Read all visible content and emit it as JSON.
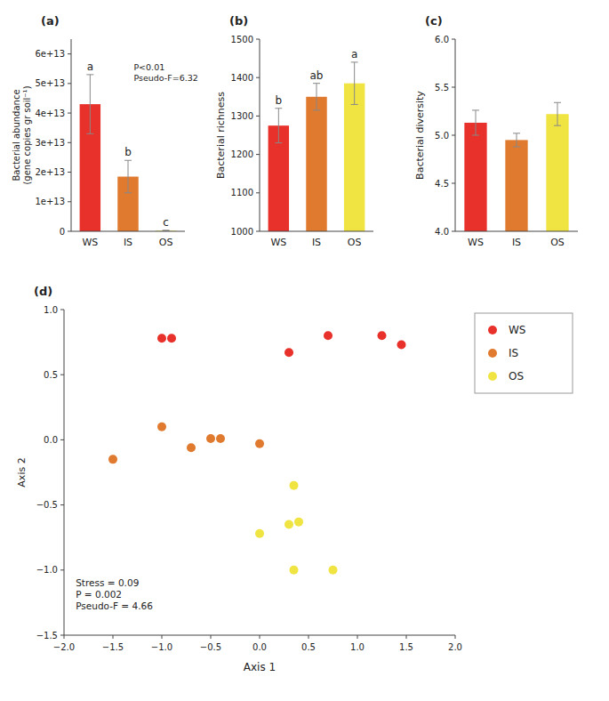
{
  "chart_data": [
    {
      "type": "bar",
      "title": "(a)",
      "categories": [
        "WS",
        "IS",
        "OS"
      ],
      "values": [
        43000000000000.0,
        18500000000000.0,
        200000000000.0
      ],
      "errors": [
        10000000000000.0,
        5500000000000.0,
        150000000000.0
      ],
      "colors": [
        "#e8312a",
        "#e07a2f",
        "#f0e442"
      ],
      "error_color": "#888888",
      "ylabel": "Bacterial abundance\n(gene copies gr soil⁻¹)",
      "ylim": [
        0,
        65000000000000.0
      ],
      "yticks": [
        0,
        {
          "value": 10000000000000.0,
          "label": "1e+13"
        },
        {
          "value": 20000000000000.0,
          "label": "2e+13"
        },
        {
          "value": 30000000000000.0,
          "label": "3e+13"
        },
        {
          "value": 40000000000000.0,
          "label": "4e+13"
        },
        {
          "value": 50000000000000.0,
          "label": "5e+13"
        },
        {
          "value": 60000000000000.0,
          "label": "6e+13"
        }
      ],
      "letters": [
        "a",
        "b",
        "c"
      ],
      "annotation": "P<0.01\nPseudo-F=6.32",
      "grid": false
    },
    {
      "type": "bar",
      "title": "(b)",
      "categories": [
        "WS",
        "IS",
        "OS"
      ],
      "values": [
        1275,
        1350,
        1385
      ],
      "errors": [
        45,
        35,
        55
      ],
      "colors": [
        "#e8312a",
        "#e07a2f",
        "#f0e442"
      ],
      "error_color": "#888888",
      "ylabel": "Bacterial richness",
      "ylim": [
        1000,
        1500
      ],
      "yticks": [
        1000,
        1100,
        1200,
        1300,
        1400,
        1500
      ],
      "letters": [
        "b",
        "ab",
        "a"
      ],
      "grid": false
    },
    {
      "type": "bar",
      "title": "(c)",
      "categories": [
        "WS",
        "IS",
        "OS"
      ],
      "values": [
        5.13,
        4.95,
        5.22
      ],
      "errors": [
        0.13,
        0.07,
        0.12
      ],
      "colors": [
        "#e8312a",
        "#e07a2f",
        "#f0e442"
      ],
      "error_color": "#888888",
      "ylabel": "Bacterial diversity",
      "ylim": [
        4.0,
        6.0
      ],
      "yticks": [
        {
          "value": 4.0,
          "label": "4.0"
        },
        4.5,
        {
          "value": 5.0,
          "label": "5.0"
        },
        5.5,
        {
          "value": 6.0,
          "label": "6.0"
        }
      ],
      "grid": false
    },
    {
      "type": "scatter",
      "title": "(d)",
      "xlabel": "Axis 1",
      "ylabel": "Axis 2",
      "xlim": [
        -2,
        2
      ],
      "ylim": [
        -1.5,
        1.0
      ],
      "xticks": [
        {
          "value": -2,
          "label": "−2.0"
        },
        {
          "value": -1.5,
          "label": "−1.5"
        },
        {
          "value": -1,
          "label": "−1.0"
        },
        {
          "value": -0.5,
          "label": "−0.5"
        },
        {
          "value": 0,
          "label": "0.0"
        },
        0.5,
        {
          "value": 1,
          "label": "1.0"
        },
        1.5,
        {
          "value": 2,
          "label": "2.0"
        }
      ],
      "yticks": [
        {
          "value": -1.5,
          "label": "−1.5"
        },
        {
          "value": -1.0,
          "label": "−1.0"
        },
        {
          "value": -0.5,
          "label": "−0.5"
        },
        {
          "value": 0,
          "label": "0.0"
        },
        0.5,
        {
          "value": 1.0,
          "label": "1.0"
        }
      ],
      "series": [
        {
          "name": "WS",
          "color": "#e8312a",
          "x": [
            -1.0,
            -0.9,
            0.3,
            1.25,
            1.45,
            0.7
          ],
          "values": [
            0.78,
            0.78,
            0.67,
            0.8,
            0.73,
            0.8
          ]
        },
        {
          "name": "IS",
          "color": "#e07a2f",
          "x": [
            -1.5,
            -1.0,
            -0.7,
            -0.5,
            -0.4,
            0.0
          ],
          "values": [
            -0.15,
            0.1,
            -0.06,
            0.01,
            0.01,
            -0.03
          ]
        },
        {
          "name": "OS",
          "color": "#f0e442",
          "x": [
            0.35,
            0.4,
            0.0,
            0.3,
            0.35,
            0.75
          ],
          "values": [
            -0.35,
            -0.63,
            -0.72,
            -0.65,
            -1.0,
            -1.0
          ]
        }
      ],
      "annotation": "Stress = 0.09\nP = 0.002\nPseudo-F = 4.66",
      "legend": "right",
      "grid": false
    }
  ]
}
